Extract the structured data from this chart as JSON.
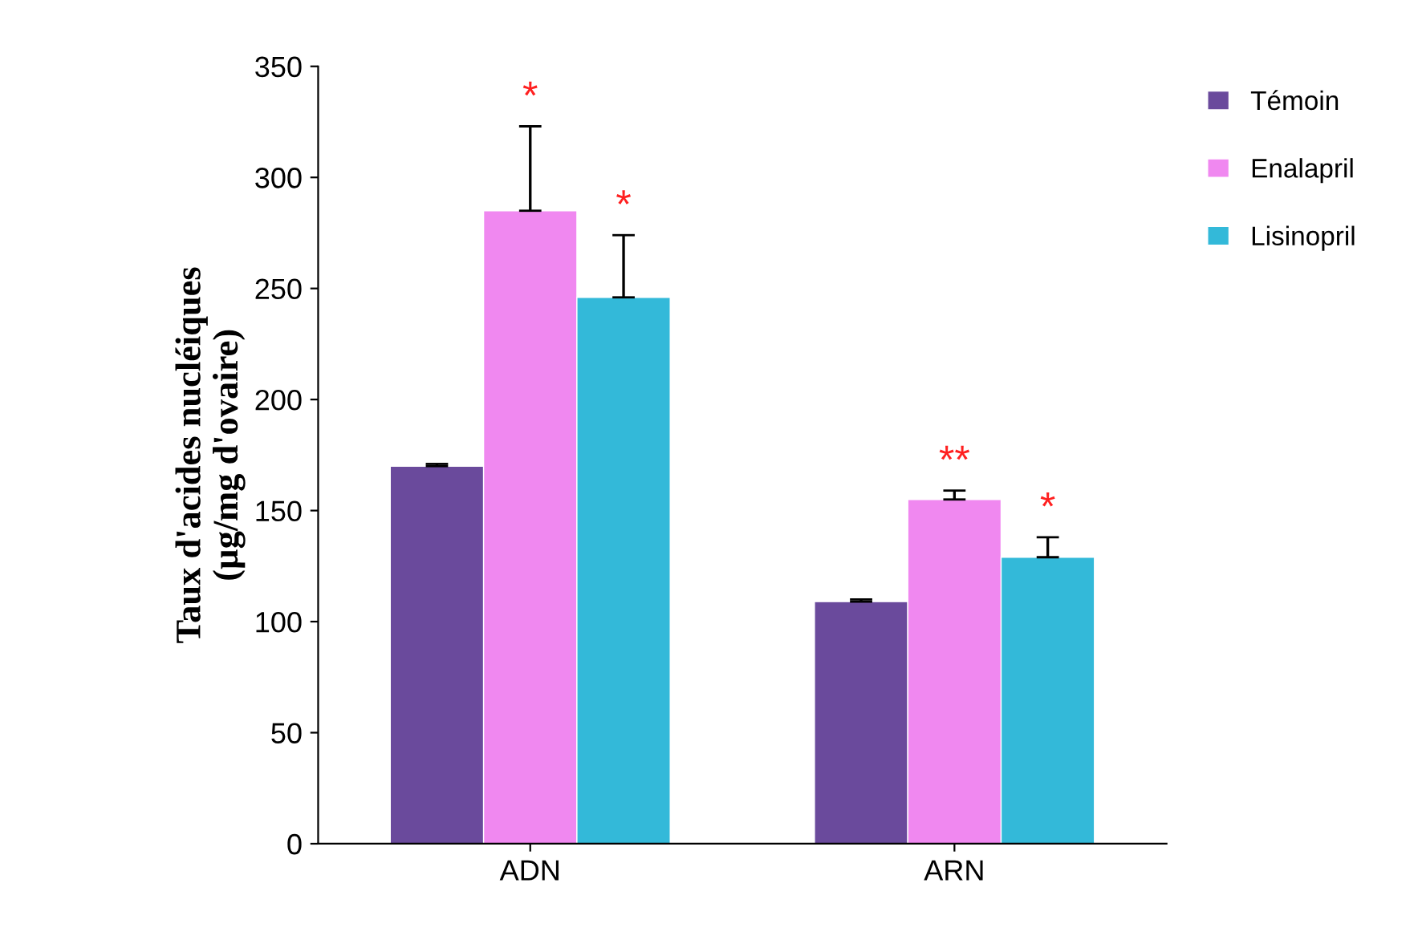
{
  "chart_data": {
    "type": "bar",
    "ylabel": "Taux d'acides nucléiques\n(µg/mg d'ovaire)",
    "categories": [
      "ADN",
      "ARN"
    ],
    "series": [
      {
        "name": "Témoin",
        "color": "#6a4a9c",
        "values": [
          170,
          109
        ],
        "errors": [
          [
            170,
            171
          ],
          [
            109,
            110
          ]
        ]
      },
      {
        "name": "Enalapril",
        "color": "#f088f0",
        "values": [
          285,
          155
        ],
        "errors": [
          [
            285,
            323
          ],
          [
            155,
            159
          ]
        ]
      },
      {
        "name": "Lisinopril",
        "color": "#33b9d9",
        "values": [
          246,
          129
        ],
        "errors": [
          [
            246,
            274
          ],
          [
            129,
            138
          ]
        ]
      }
    ],
    "ylim": [
      0,
      350
    ],
    "yticks": [
      0,
      50,
      100,
      150,
      200,
      250,
      300,
      350
    ],
    "legend": "right",
    "grid": false,
    "annotations": [
      "*",
      "*",
      "**",
      "*"
    ]
  }
}
